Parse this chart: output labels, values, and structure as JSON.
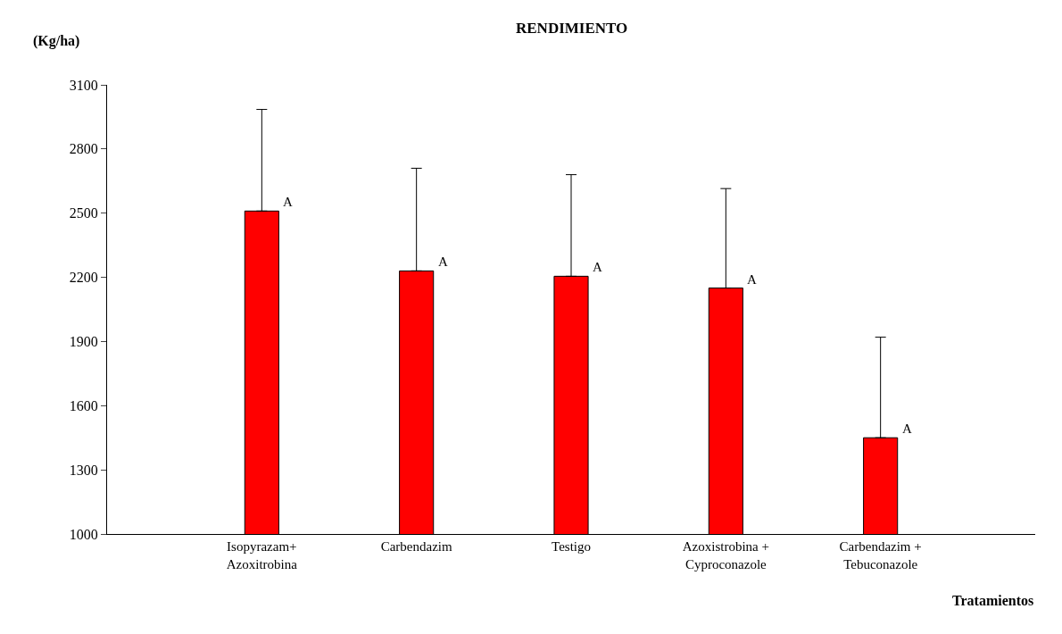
{
  "chart_data": {
    "type": "bar",
    "title": "RENDIMIENTO",
    "xlabel": "Tratamientos",
    "ylabel": "(Kg/ha)",
    "categories": [
      "Isopyrazam+ Azoxitrobina",
      "Carbendazim",
      "Testigo",
      "Azoxistrobina + Cyproconazole",
      "Carbendazim + Tebuconazole"
    ],
    "values": [
      2510,
      2230,
      2205,
      2150,
      1450
    ],
    "errors": [
      [
        2510,
        2985
      ],
      [
        2230,
        2710
      ],
      [
        2205,
        2680
      ],
      [
        2150,
        2615
      ],
      [
        1450,
        1920
      ]
    ],
    "color": "#ff0000",
    "ylim": [
      1000,
      3100
    ],
    "yticks": [
      1000,
      1300,
      1600,
      1900,
      2200,
      2500,
      2800,
      3100
    ],
    "annotations": [
      {
        "text": "A",
        "x": "Isopyrazam+ Azoxitrobina",
        "y": 2510
      },
      {
        "text": "A",
        "x": "Carbendazim",
        "y": 2230
      },
      {
        "text": "A",
        "x": "Testigo",
        "y": 2205
      },
      {
        "text": "A",
        "x": "Azoxistrobina + Cyproconazole",
        "y": 2150
      },
      {
        "text": "A",
        "x": "Carbendazim + Tebuconazole",
        "y": 1450
      }
    ]
  }
}
